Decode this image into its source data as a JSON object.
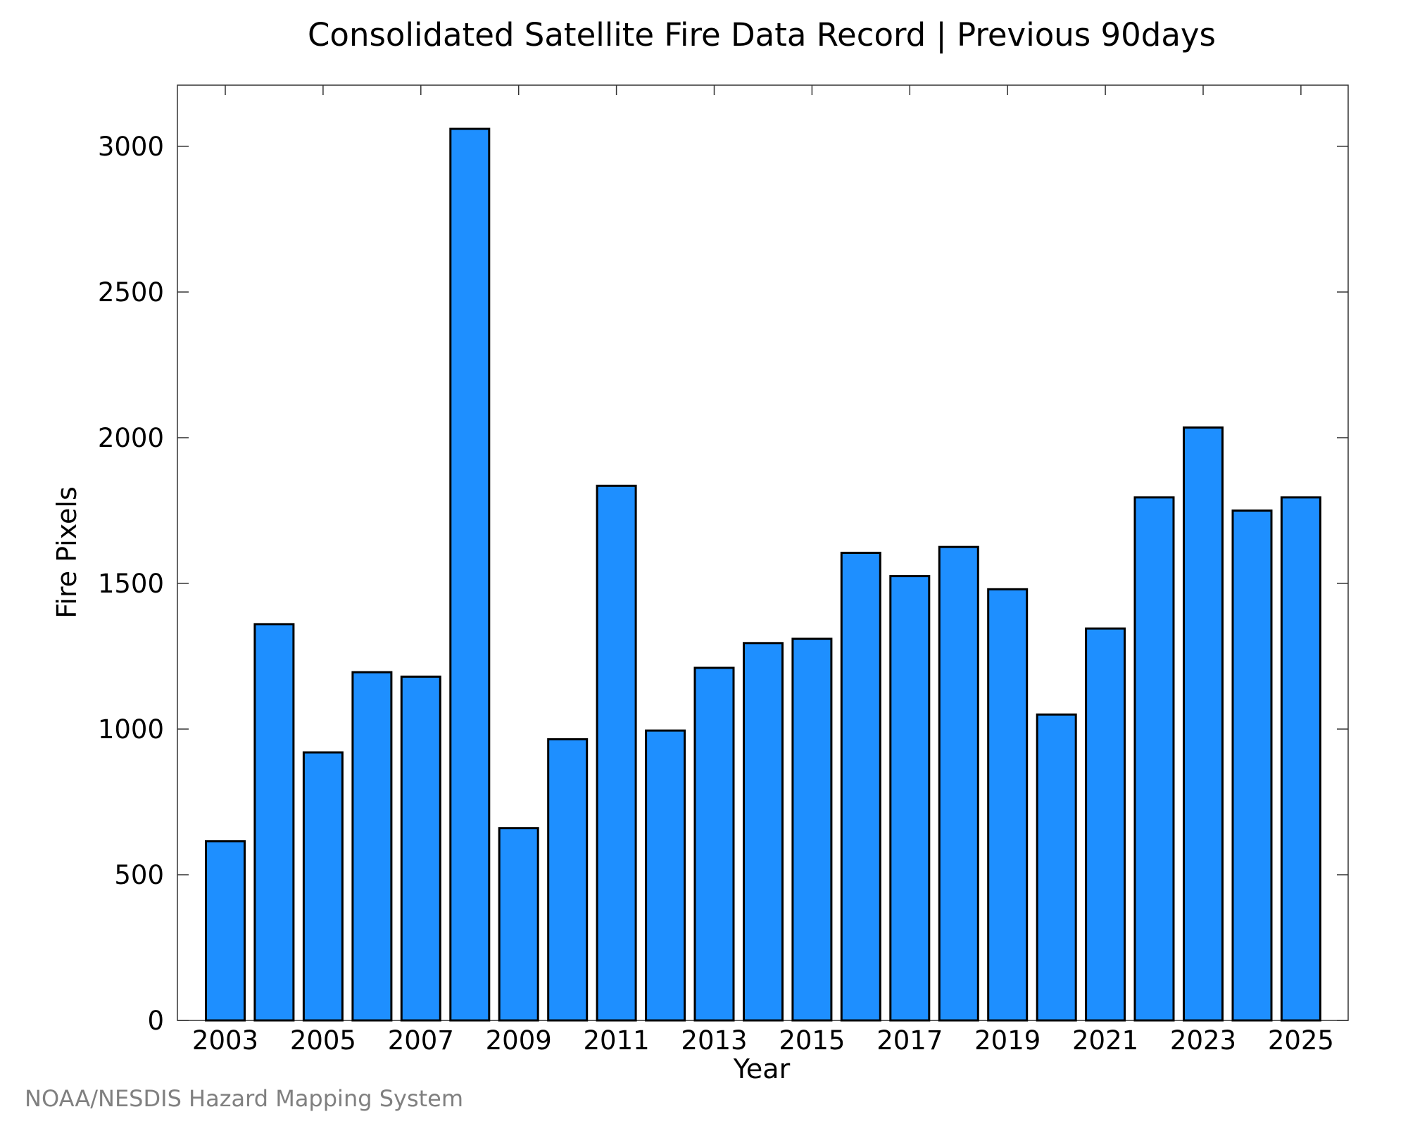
{
  "chart_data": {
    "type": "bar",
    "title": "Consolidated Satellite Fire Data Record | Previous 90days",
    "xlabel": "Year",
    "ylabel": "Fire Pixels",
    "categories": [
      2003,
      2004,
      2005,
      2006,
      2007,
      2008,
      2009,
      2010,
      2011,
      2012,
      2013,
      2014,
      2015,
      2016,
      2017,
      2018,
      2019,
      2020,
      2021,
      2022,
      2023,
      2024,
      2025
    ],
    "values": [
      615,
      1360,
      920,
      1195,
      1180,
      3060,
      660,
      965,
      1835,
      995,
      1210,
      1295,
      1310,
      1605,
      1525,
      1625,
      1480,
      1050,
      1345,
      1795,
      2035,
      1750,
      1795
    ],
    "xtick_labels": [
      "2003",
      "2005",
      "2007",
      "2009",
      "2011",
      "2013",
      "2015",
      "2017",
      "2019",
      "2021",
      "2023",
      "2025"
    ],
    "ytick_labels": [
      "0",
      "500",
      "1000",
      "1500",
      "2000",
      "2500",
      "3000"
    ],
    "ylim": [
      0,
      3210
    ],
    "grid": false,
    "bar_color": "#1E8FFF",
    "bar_edge_color": "#000000",
    "credit": "NOAA/NESDIS Hazard Mapping System"
  }
}
